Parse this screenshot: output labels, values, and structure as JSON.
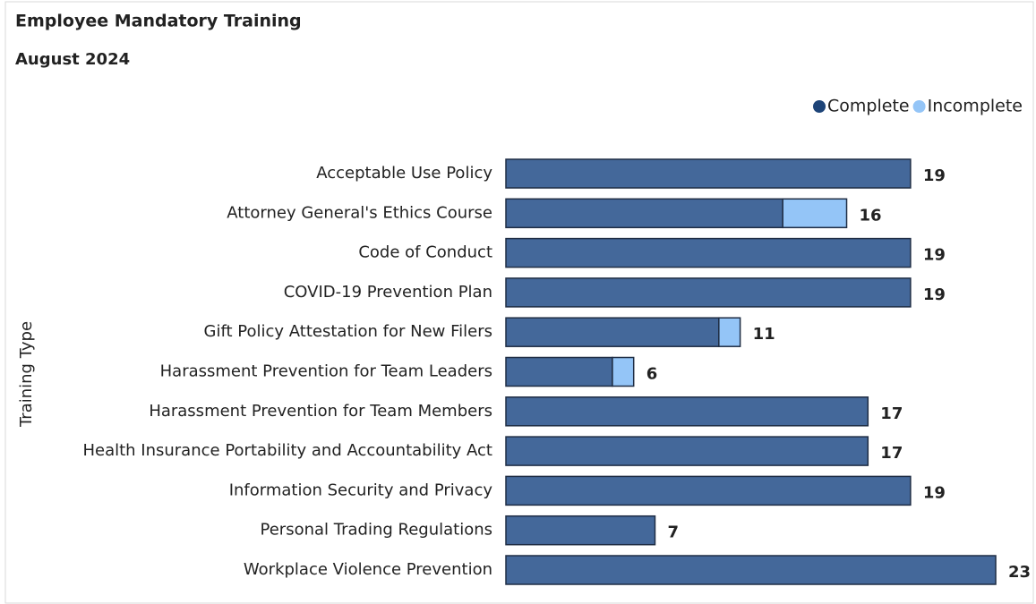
{
  "chart_data": {
    "type": "stacked-bar-horizontal",
    "title": "Employee Mandatory Training",
    "subtitle": "August 2024",
    "y_axis_label": "Training Type",
    "categories": [
      "Acceptable Use Policy",
      "Attorney General's Ethics Course",
      "Code of Conduct",
      "COVID-19 Prevention Plan",
      "Gift Policy Attestation for New Filers",
      "Harassment Prevention for Team Leaders",
      "Harassment Prevention for Team Members",
      "Health Insurance Portability and Accountability Act",
      "Information Security and Privacy",
      "Personal Trading Regulations",
      "Workplace Violence Prevention"
    ],
    "series": [
      {
        "name": "Complete",
        "color": "#44689a",
        "values": [
          19,
          13,
          19,
          19,
          10,
          5,
          17,
          17,
          19,
          7,
          23
        ]
      },
      {
        "name": "Incomplete",
        "color": "#94c5f7",
        "values": [
          0,
          3,
          0,
          0,
          1,
          1,
          0,
          0,
          0,
          0,
          0
        ]
      }
    ],
    "total_labels": [
      19,
      16,
      19,
      19,
      11,
      6,
      17,
      17,
      19,
      7,
      23
    ],
    "legend": "top-right"
  }
}
